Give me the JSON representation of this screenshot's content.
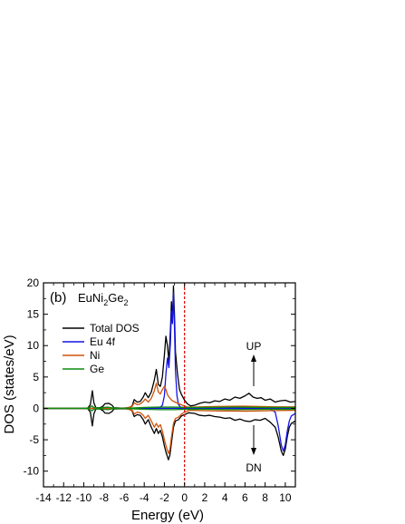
{
  "chart_data": {
    "type": "line",
    "panel_label": "(b)",
    "compound": {
      "base": "EuNi",
      "sub1": "2",
      "mid": "Ge",
      "sub2": "2"
    },
    "xlabel": "Energy (eV)",
    "ylabel": "DOS (states/eV)",
    "xlim": [
      -14,
      11
    ],
    "ylim": [
      -12.5,
      20
    ],
    "xticks": [
      -14,
      -12,
      -10,
      -8,
      -6,
      -4,
      -2,
      0,
      2,
      4,
      6,
      8,
      10
    ],
    "yticks": [
      -10,
      -5,
      0,
      5,
      10,
      15,
      20
    ],
    "fermi_level": 0,
    "annotations": {
      "up": "UP",
      "dn": "DN"
    },
    "legend_position": "upper-left",
    "series": [
      {
        "name": "Total DOS",
        "color": "#000000",
        "up": [
          [
            -14,
            0
          ],
          [
            -10,
            0
          ],
          [
            -9.6,
            0.05
          ],
          [
            -9.35,
            0.6
          ],
          [
            -9.15,
            2.8
          ],
          [
            -9.0,
            0.9
          ],
          [
            -8.8,
            0.1
          ],
          [
            -8.4,
            0.1
          ],
          [
            -8.1,
            0.35
          ],
          [
            -7.9,
            0.75
          ],
          [
            -7.5,
            0.8
          ],
          [
            -7.2,
            0.5
          ],
          [
            -7.0,
            0.1
          ],
          [
            -6.2,
            0.05
          ],
          [
            -5.5,
            0.1
          ],
          [
            -5.2,
            0.4
          ],
          [
            -5.0,
            1.4
          ],
          [
            -4.7,
            1.0
          ],
          [
            -4.4,
            1.1
          ],
          [
            -4.1,
            1.8
          ],
          [
            -3.9,
            2.5
          ],
          [
            -3.6,
            1.7
          ],
          [
            -3.3,
            2.6
          ],
          [
            -3.0,
            4.5
          ],
          [
            -2.8,
            6.2
          ],
          [
            -2.6,
            3.8
          ],
          [
            -2.4,
            3.5
          ],
          [
            -2.2,
            5.0
          ],
          [
            -2.0,
            8.5
          ],
          [
            -1.85,
            11.5
          ],
          [
            -1.7,
            10.0
          ],
          [
            -1.55,
            7.5
          ],
          [
            -1.4,
            12.5
          ],
          [
            -1.3,
            17.0
          ],
          [
            -1.2,
            14.0
          ],
          [
            -1.1,
            19.5
          ],
          [
            -1.0,
            15.0
          ],
          [
            -0.9,
            9.0
          ],
          [
            -0.7,
            5.5
          ],
          [
            -0.5,
            3.0
          ],
          [
            -0.3,
            2.2
          ],
          [
            0.0,
            1.3
          ],
          [
            0.3,
            0.7
          ],
          [
            0.6,
            0.4
          ],
          [
            1.0,
            0.5
          ],
          [
            1.5,
            0.8
          ],
          [
            2.0,
            1.0
          ],
          [
            2.5,
            0.9
          ],
          [
            3.0,
            1.2
          ],
          [
            3.5,
            1.1
          ],
          [
            4.0,
            1.5
          ],
          [
            4.5,
            1.3
          ],
          [
            5.0,
            1.8
          ],
          [
            5.5,
            1.6
          ],
          [
            6.0,
            2.0
          ],
          [
            6.4,
            2.4
          ],
          [
            6.8,
            1.8
          ],
          [
            7.2,
            1.6
          ],
          [
            7.6,
            1.7
          ],
          [
            8.0,
            1.3
          ],
          [
            8.5,
            1.5
          ],
          [
            9.0,
            1.0
          ],
          [
            9.5,
            1.2
          ],
          [
            10.0,
            1.3
          ],
          [
            10.5,
            1.0
          ],
          [
            11,
            1.1
          ]
        ],
        "dn": [
          [
            -14,
            0
          ],
          [
            -10,
            0
          ],
          [
            -9.6,
            -0.05
          ],
          [
            -9.35,
            -0.6
          ],
          [
            -9.15,
            -2.8
          ],
          [
            -9.0,
            -0.9
          ],
          [
            -8.8,
            -0.1
          ],
          [
            -8.4,
            -0.1
          ],
          [
            -8.1,
            -0.35
          ],
          [
            -7.9,
            -0.75
          ],
          [
            -7.5,
            -0.8
          ],
          [
            -7.2,
            -0.5
          ],
          [
            -7.0,
            -0.1
          ],
          [
            -6.2,
            -0.05
          ],
          [
            -5.5,
            -0.1
          ],
          [
            -5.2,
            -0.4
          ],
          [
            -5.0,
            -1.3
          ],
          [
            -4.7,
            -1.0
          ],
          [
            -4.4,
            -1.1
          ],
          [
            -4.1,
            -1.8
          ],
          [
            -3.9,
            -2.5
          ],
          [
            -3.6,
            -1.8
          ],
          [
            -3.3,
            -3.0
          ],
          [
            -3.0,
            -4.0
          ],
          [
            -2.8,
            -3.2
          ],
          [
            -2.6,
            -4.0
          ],
          [
            -2.4,
            -3.5
          ],
          [
            -2.2,
            -4.5
          ],
          [
            -2.0,
            -6.0
          ],
          [
            -1.8,
            -7.2
          ],
          [
            -1.6,
            -8.2
          ],
          [
            -1.45,
            -7.4
          ],
          [
            -1.3,
            -5.5
          ],
          [
            -1.1,
            -3.0
          ],
          [
            -0.9,
            -2.0
          ],
          [
            -0.6,
            -1.8
          ],
          [
            -0.3,
            -1.2
          ],
          [
            0.0,
            -1.0
          ],
          [
            0.4,
            -0.7
          ],
          [
            1.0,
            -0.8
          ],
          [
            1.5,
            -1.1
          ],
          [
            2.0,
            -1.2
          ],
          [
            2.5,
            -1.1
          ],
          [
            3.0,
            -1.3
          ],
          [
            3.5,
            -1.4
          ],
          [
            4.0,
            -1.6
          ],
          [
            4.5,
            -1.5
          ],
          [
            5.0,
            -1.9
          ],
          [
            5.5,
            -1.7
          ],
          [
            6.0,
            -2.0
          ],
          [
            6.5,
            -2.1
          ],
          [
            7.0,
            -1.8
          ],
          [
            7.5,
            -1.9
          ],
          [
            8.0,
            -1.6
          ],
          [
            8.5,
            -2.2
          ],
          [
            9.0,
            -3.0
          ],
          [
            9.3,
            -4.6
          ],
          [
            9.6,
            -6.8
          ],
          [
            9.8,
            -7.5
          ],
          [
            10.0,
            -6.5
          ],
          [
            10.2,
            -4.5
          ],
          [
            10.4,
            -3.0
          ],
          [
            10.6,
            -2.4
          ],
          [
            11,
            -2.0
          ]
        ]
      },
      {
        "name": "Eu 4f",
        "color": "#1414e6",
        "up": [
          [
            -14,
            0
          ],
          [
            -4,
            0
          ],
          [
            -2.5,
            0.05
          ],
          [
            -2.2,
            0.5
          ],
          [
            -2.0,
            2.0
          ],
          [
            -1.85,
            5.5
          ],
          [
            -1.7,
            8.0
          ],
          [
            -1.55,
            6.5
          ],
          [
            -1.4,
            10.5
          ],
          [
            -1.3,
            15.5
          ],
          [
            -1.2,
            13.5
          ],
          [
            -1.1,
            18.5
          ],
          [
            -1.0,
            13.0
          ],
          [
            -0.9,
            6.0
          ],
          [
            -0.75,
            2.0
          ],
          [
            -0.6,
            0.6
          ],
          [
            -0.4,
            0.2
          ],
          [
            0,
            0.1
          ],
          [
            11,
            0
          ]
        ],
        "dn": [
          [
            -14,
            0
          ],
          [
            0,
            0
          ],
          [
            3,
            0
          ],
          [
            6,
            -0.05
          ],
          [
            8.5,
            -0.1
          ],
          [
            9.0,
            -0.6
          ],
          [
            9.3,
            -2.8
          ],
          [
            9.6,
            -5.8
          ],
          [
            9.8,
            -6.8
          ],
          [
            10.0,
            -5.8
          ],
          [
            10.2,
            -3.6
          ],
          [
            10.4,
            -2.0
          ],
          [
            10.6,
            -1.2
          ],
          [
            11,
            -0.8
          ]
        ]
      },
      {
        "name": "Ni",
        "color": "#d2520a",
        "up": [
          [
            -14,
            0
          ],
          [
            -6,
            0
          ],
          [
            -5.2,
            0.3
          ],
          [
            -5.0,
            0.9
          ],
          [
            -4.7,
            0.6
          ],
          [
            -4.4,
            0.7
          ],
          [
            -4.1,
            1.1
          ],
          [
            -3.9,
            1.5
          ],
          [
            -3.6,
            1.0
          ],
          [
            -3.3,
            1.6
          ],
          [
            -3.0,
            2.8
          ],
          [
            -2.8,
            4.0
          ],
          [
            -2.6,
            2.6
          ],
          [
            -2.4,
            2.3
          ],
          [
            -2.2,
            3.0
          ],
          [
            -2.0,
            3.5
          ],
          [
            -1.85,
            3.0
          ],
          [
            -1.7,
            2.2
          ],
          [
            -1.5,
            1.7
          ],
          [
            -1.2,
            1.2
          ],
          [
            -0.8,
            0.9
          ],
          [
            -0.5,
            0.7
          ],
          [
            -0.2,
            0.5
          ],
          [
            0.3,
            0.2
          ],
          [
            1.0,
            0.2
          ],
          [
            3,
            0.3
          ],
          [
            6,
            0.35
          ],
          [
            9,
            0.25
          ],
          [
            11,
            0.25
          ]
        ],
        "dn": [
          [
            -14,
            0
          ],
          [
            -6,
            0
          ],
          [
            -5.2,
            -0.3
          ],
          [
            -5.0,
            -0.9
          ],
          [
            -4.7,
            -0.6
          ],
          [
            -4.4,
            -0.7
          ],
          [
            -4.1,
            -1.1
          ],
          [
            -3.9,
            -1.6
          ],
          [
            -3.6,
            -1.1
          ],
          [
            -3.3,
            -2.0
          ],
          [
            -3.0,
            -3.0
          ],
          [
            -2.8,
            -2.4
          ],
          [
            -2.6,
            -3.0
          ],
          [
            -2.4,
            -2.6
          ],
          [
            -2.2,
            -3.6
          ],
          [
            -2.0,
            -5.0
          ],
          [
            -1.8,
            -6.2
          ],
          [
            -1.6,
            -7.2
          ],
          [
            -1.45,
            -6.5
          ],
          [
            -1.3,
            -4.6
          ],
          [
            -1.1,
            -2.4
          ],
          [
            -0.9,
            -1.6
          ],
          [
            -0.6,
            -1.4
          ],
          [
            -0.3,
            -0.9
          ],
          [
            0.0,
            -0.6
          ],
          [
            0.5,
            -0.3
          ],
          [
            1.5,
            -0.35
          ],
          [
            3,
            -0.4
          ],
          [
            6,
            -0.45
          ],
          [
            9,
            -0.35
          ],
          [
            11,
            -0.3
          ]
        ]
      },
      {
        "name": "Ge",
        "color": "#0f8a0f",
        "up": [
          [
            -14,
            0
          ],
          [
            -10,
            0
          ],
          [
            -9.5,
            0.1
          ],
          [
            -9.2,
            0.4
          ],
          [
            -9.0,
            0.15
          ],
          [
            -8.4,
            0.05
          ],
          [
            -8.0,
            0.15
          ],
          [
            -7.6,
            0.2
          ],
          [
            -7.2,
            0.1
          ],
          [
            -6.5,
            0
          ],
          [
            -5.5,
            0.05
          ],
          [
            -4.0,
            0.15
          ],
          [
            -2.5,
            0.2
          ],
          [
            -1.0,
            0.2
          ],
          [
            0,
            0.15
          ],
          [
            2,
            0.15
          ],
          [
            5,
            0.2
          ],
          [
            8,
            0.15
          ],
          [
            11,
            0.15
          ]
        ],
        "dn": [
          [
            -14,
            0
          ],
          [
            -10,
            0
          ],
          [
            -9.5,
            -0.1
          ],
          [
            -9.2,
            -0.4
          ],
          [
            -9.0,
            -0.15
          ],
          [
            -8.4,
            -0.05
          ],
          [
            -8.0,
            -0.15
          ],
          [
            -7.6,
            -0.2
          ],
          [
            -7.2,
            -0.1
          ],
          [
            -6.5,
            0
          ],
          [
            -5.5,
            -0.05
          ],
          [
            -4.0,
            -0.15
          ],
          [
            -2.5,
            -0.2
          ],
          [
            -1.0,
            -0.2
          ],
          [
            0,
            -0.15
          ],
          [
            2,
            -0.15
          ],
          [
            5,
            -0.2
          ],
          [
            8,
            -0.15
          ],
          [
            11,
            -0.15
          ]
        ]
      }
    ]
  }
}
